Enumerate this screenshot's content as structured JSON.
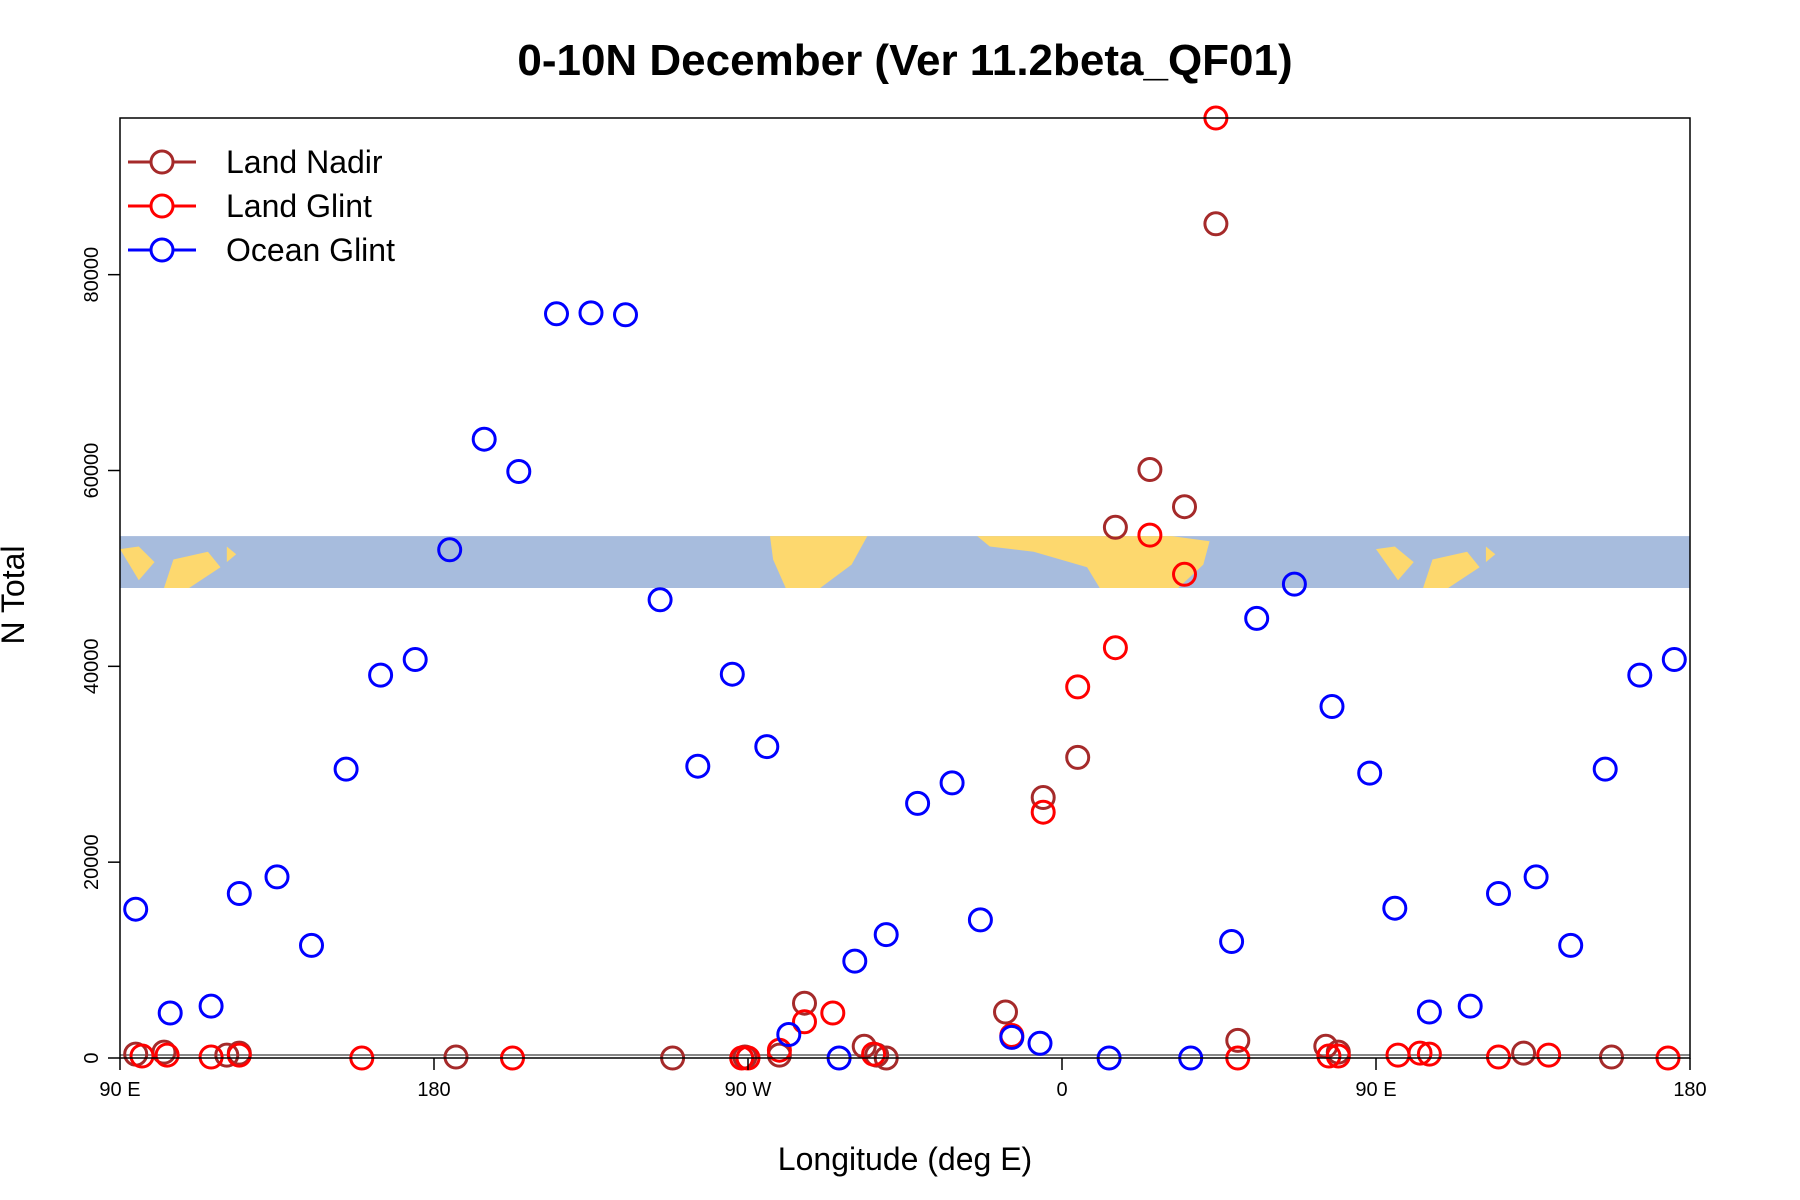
{
  "chart_data": {
    "type": "scatter",
    "title": "0-10N December (Ver 11.2beta_QF01)",
    "xlabel": "Longitude (deg E)",
    "ylabel": "N Total",
    "xlim": [
      90,
      590
    ],
    "ylim": [
      0,
      96000
    ],
    "x_ticks": [
      {
        "value": 90,
        "label": "90 E"
      },
      {
        "value": 190,
        "label": "180"
      },
      {
        "value": 290,
        "label": "90 W"
      },
      {
        "value": 390,
        "label": "0"
      },
      {
        "value": 490,
        "label": "90 E"
      },
      {
        "value": 590,
        "label": "180"
      }
    ],
    "y_ticks": [
      {
        "value": 0,
        "label": "0"
      },
      {
        "value": 20000,
        "label": "20000"
      },
      {
        "value": 40000,
        "label": "40000"
      },
      {
        "value": 60000,
        "label": "60000"
      },
      {
        "value": 80000,
        "label": "80000"
      }
    ],
    "map_band": {
      "y_min": 48000,
      "y_max": 53300,
      "description": "world map strip 0-10N"
    },
    "legend": {
      "position": "top-left"
    },
    "series": [
      {
        "name": "Land Nadir",
        "color": "#A52A2A",
        "points": [
          [
            95,
            400
          ],
          [
            104,
            600
          ],
          [
            124,
            300
          ],
          [
            128,
            500
          ],
          [
            197,
            100
          ],
          [
            266,
            0
          ],
          [
            289,
            100
          ],
          [
            300,
            300
          ],
          [
            308,
            5600
          ],
          [
            327,
            1200
          ],
          [
            331,
            300
          ],
          [
            334,
            0
          ],
          [
            372,
            4700
          ],
          [
            384,
            26600
          ],
          [
            395,
            30700
          ],
          [
            407,
            54200
          ],
          [
            418,
            60100
          ],
          [
            429,
            56300
          ],
          [
            439,
            85200
          ],
          [
            446,
            1800
          ],
          [
            474,
            1200
          ],
          [
            478,
            600
          ],
          [
            537,
            500
          ],
          [
            565,
            100
          ]
        ]
      },
      {
        "name": "Land Glint",
        "color": "#FF0000",
        "points": [
          [
            97,
            200
          ],
          [
            105,
            300
          ],
          [
            119,
            100
          ],
          [
            128,
            300
          ],
          [
            167,
            0
          ],
          [
            215,
            0
          ],
          [
            288,
            0
          ],
          [
            290,
            0
          ],
          [
            300,
            800
          ],
          [
            308,
            3700
          ],
          [
            317,
            4600
          ],
          [
            330,
            400
          ],
          [
            374,
            2300
          ],
          [
            384,
            25100
          ],
          [
            395,
            37900
          ],
          [
            407,
            41900
          ],
          [
            418,
            53400
          ],
          [
            429,
            49400
          ],
          [
            439,
            96000
          ],
          [
            446,
            0
          ],
          [
            475,
            200
          ],
          [
            478,
            200
          ],
          [
            497,
            300
          ],
          [
            504,
            500
          ],
          [
            507,
            400
          ],
          [
            529,
            100
          ],
          [
            545,
            300
          ],
          [
            583,
            0
          ]
        ]
      },
      {
        "name": "Ocean Glint",
        "color": "#0000FF",
        "points": [
          [
            95,
            15200
          ],
          [
            106,
            4600
          ],
          [
            119,
            5300
          ],
          [
            128,
            16800
          ],
          [
            140,
            18500
          ],
          [
            151,
            11500
          ],
          [
            162,
            29500
          ],
          [
            173,
            39100
          ],
          [
            184,
            40700
          ],
          [
            195,
            51900
          ],
          [
            206,
            63200
          ],
          [
            217,
            59900
          ],
          [
            229,
            76000
          ],
          [
            240,
            76100
          ],
          [
            251,
            75900
          ],
          [
            262,
            46800
          ],
          [
            285,
            39200
          ],
          [
            274,
            29800
          ],
          [
            296,
            31800
          ],
          [
            303,
            2400
          ],
          [
            319,
            0
          ],
          [
            324,
            9900
          ],
          [
            334,
            12600
          ],
          [
            344,
            26000
          ],
          [
            355,
            28100
          ],
          [
            364,
            14100
          ],
          [
            374,
            2100
          ],
          [
            383,
            1500
          ],
          [
            405,
            0
          ],
          [
            431,
            0
          ],
          [
            444,
            11900
          ],
          [
            452,
            44900
          ],
          [
            464,
            48400
          ],
          [
            476,
            35900
          ],
          [
            488,
            29100
          ],
          [
            496,
            15300
          ],
          [
            507,
            4700
          ],
          [
            520,
            5300
          ],
          [
            529,
            16800
          ],
          [
            541,
            18500
          ],
          [
            552,
            11500
          ],
          [
            563,
            29500
          ],
          [
            574,
            39100
          ],
          [
            585,
            40700
          ]
        ]
      }
    ]
  }
}
